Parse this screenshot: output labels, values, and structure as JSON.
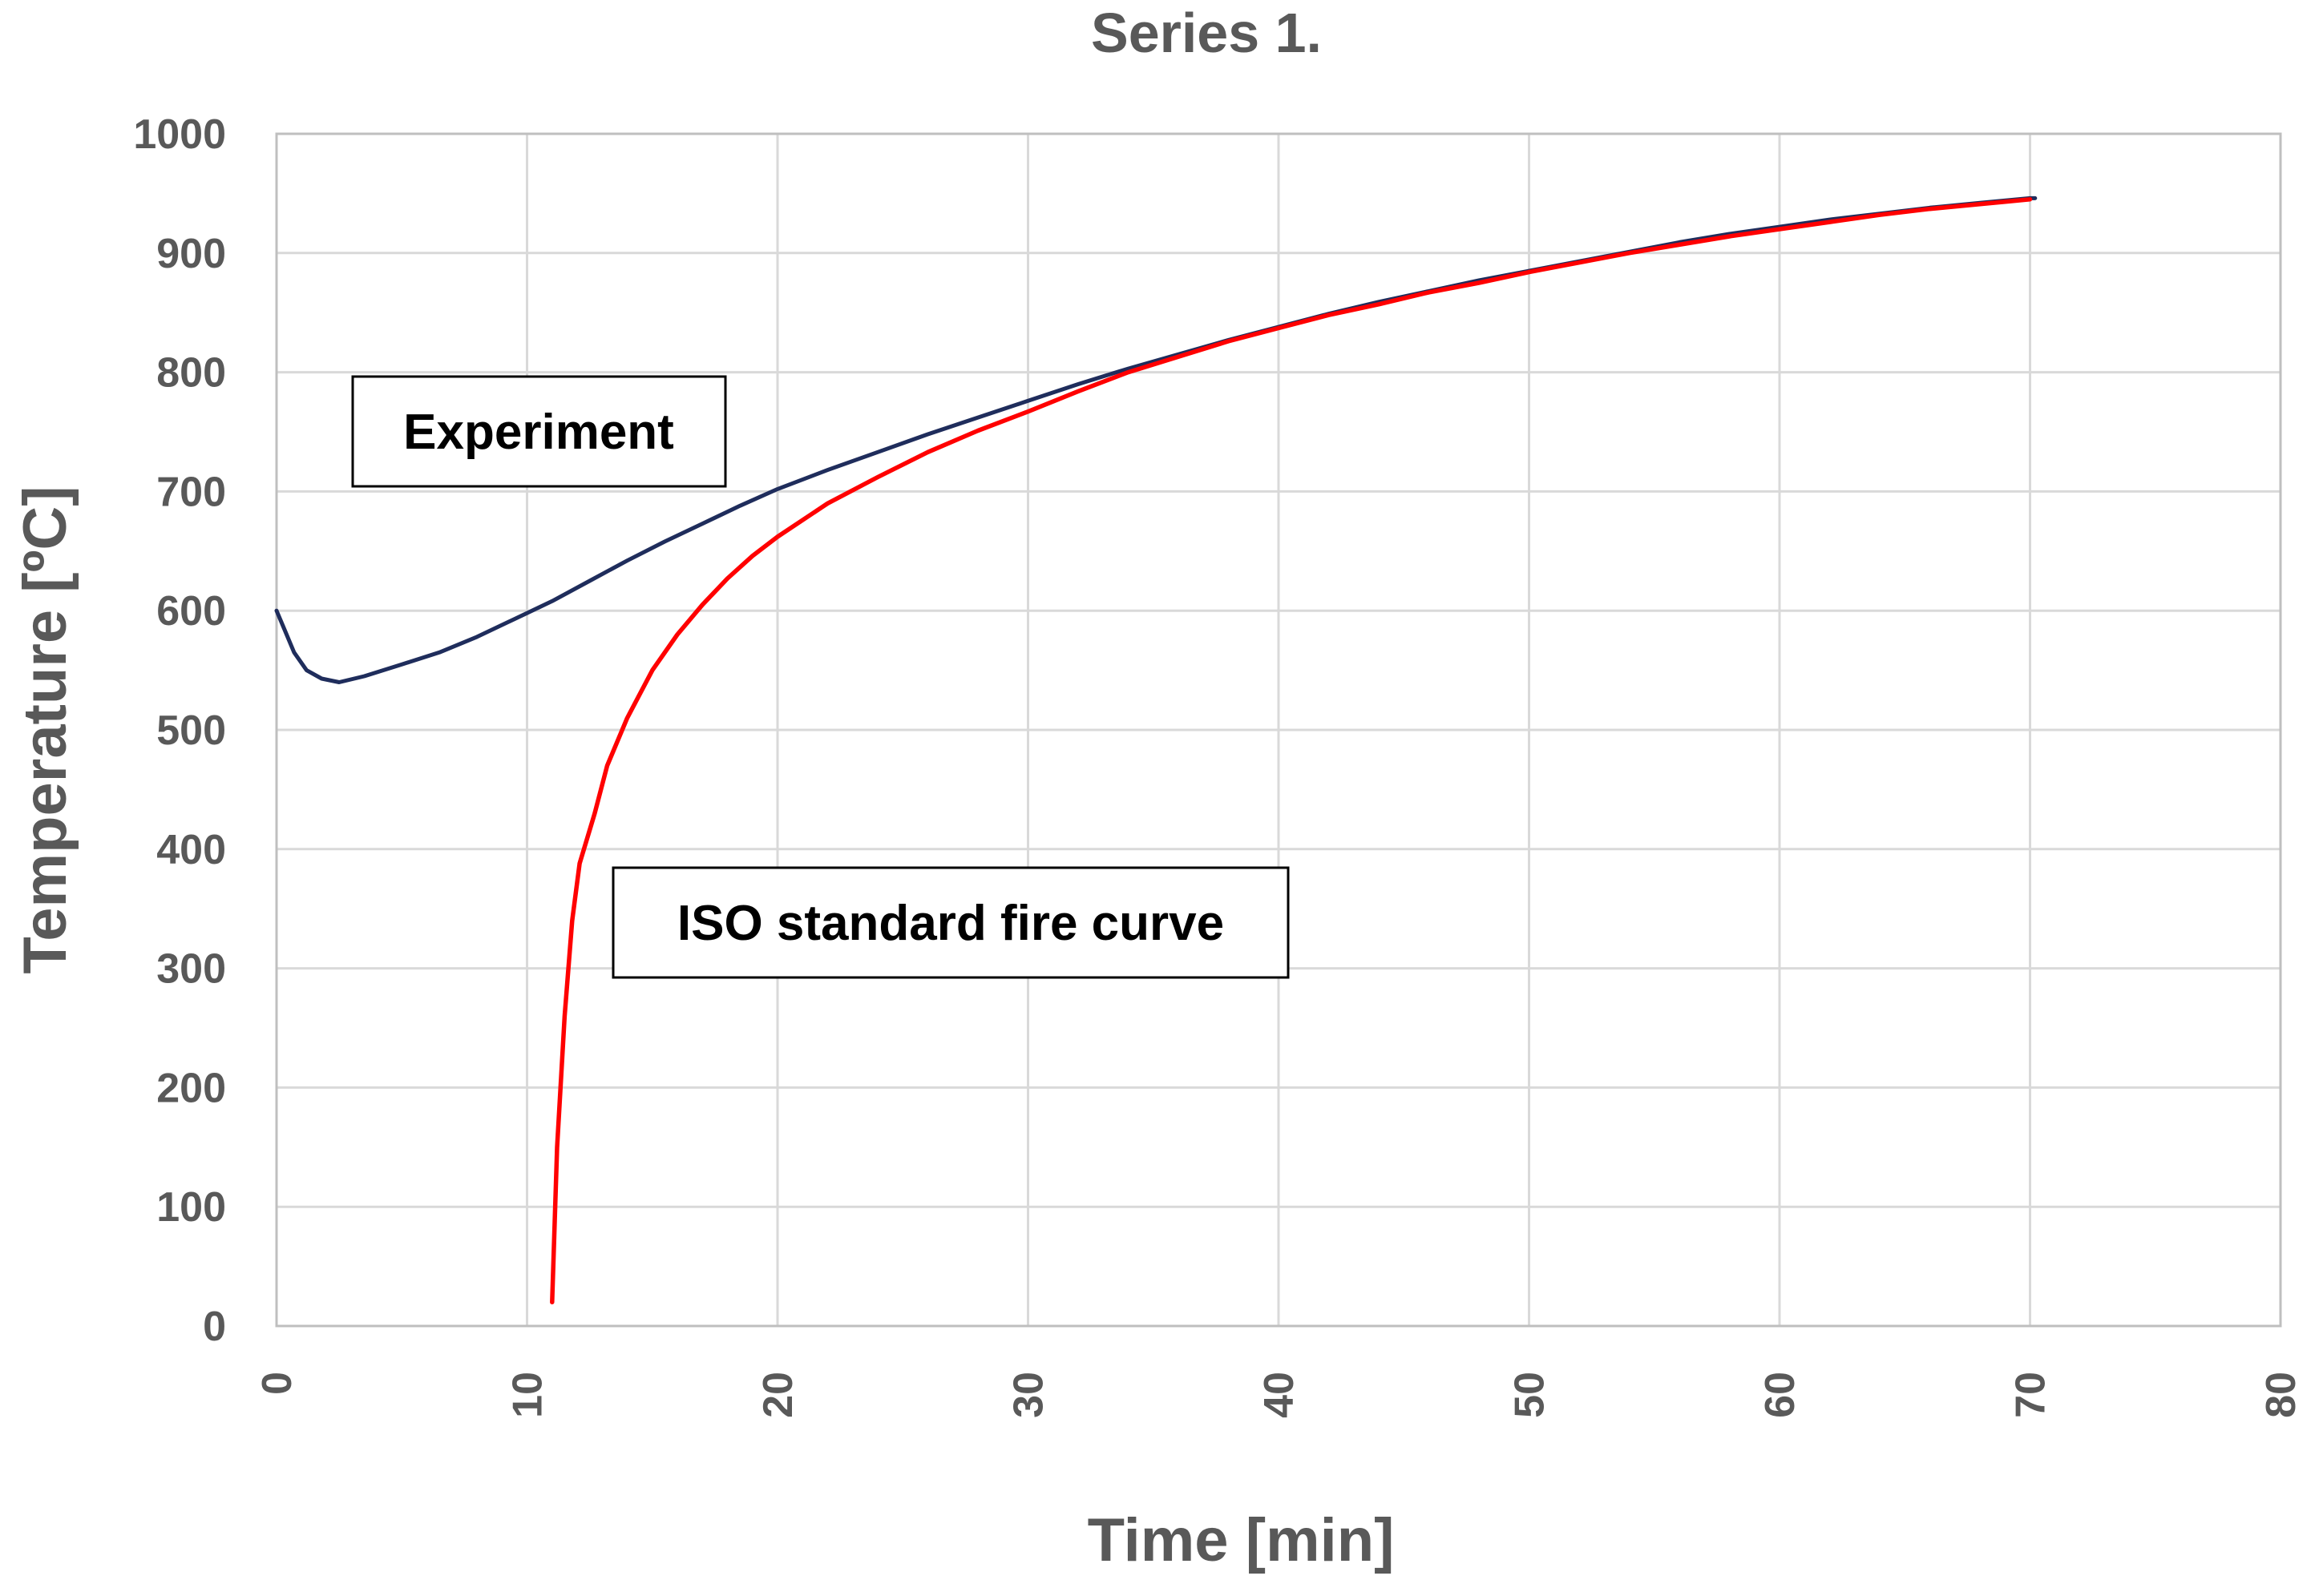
{
  "chart_data": {
    "type": "line",
    "title": "Series 1.",
    "xlabel": "Time [min]",
    "ylabel": "Temperature [ºC]",
    "xlim": [
      0,
      80
    ],
    "ylim": [
      0,
      1000
    ],
    "x_ticks": [
      0,
      10,
      20,
      30,
      40,
      50,
      60,
      70,
      80
    ],
    "y_ticks": [
      0,
      100,
      200,
      300,
      400,
      500,
      600,
      700,
      800,
      900,
      1000
    ],
    "grid": true,
    "series": [
      {
        "name": "Experiment",
        "color": "#1f2d5c",
        "points": [
          [
            0,
            600
          ],
          [
            0.3,
            585
          ],
          [
            0.7,
            565
          ],
          [
            1.2,
            550
          ],
          [
            1.8,
            543
          ],
          [
            2.5,
            540
          ],
          [
            3.5,
            545
          ],
          [
            5,
            555
          ],
          [
            6.5,
            565
          ],
          [
            8,
            578
          ],
          [
            9.5,
            593
          ],
          [
            11,
            608
          ],
          [
            12.5,
            625
          ],
          [
            14,
            642
          ],
          [
            15.5,
            658
          ],
          [
            17,
            673
          ],
          [
            18.5,
            688
          ],
          [
            20,
            702
          ],
          [
            22,
            718
          ],
          [
            24,
            733
          ],
          [
            26,
            748
          ],
          [
            28,
            762
          ],
          [
            30,
            776
          ],
          [
            32,
            790
          ],
          [
            34,
            803
          ],
          [
            36,
            815
          ],
          [
            38,
            827
          ],
          [
            40,
            838
          ],
          [
            42,
            849
          ],
          [
            44,
            859
          ],
          [
            46,
            868
          ],
          [
            48,
            877
          ],
          [
            50,
            885
          ],
          [
            52,
            893
          ],
          [
            54,
            901
          ],
          [
            56,
            909
          ],
          [
            58,
            916
          ],
          [
            60,
            922
          ],
          [
            62,
            928
          ],
          [
            64,
            933
          ],
          [
            66,
            938
          ],
          [
            68,
            942
          ],
          [
            70,
            946
          ],
          [
            70.2,
            946
          ]
        ]
      },
      {
        "name": "ISO standard fire curve",
        "color": "#ff0000",
        "points": [
          [
            11,
            20
          ],
          [
            11.2,
            150
          ],
          [
            11.5,
            260
          ],
          [
            11.8,
            340
          ],
          [
            12.1,
            388
          ],
          [
            12.7,
            430
          ],
          [
            13.2,
            470
          ],
          [
            14,
            510
          ],
          [
            15,
            550
          ],
          [
            16,
            580
          ],
          [
            17,
            605
          ],
          [
            18,
            627
          ],
          [
            19,
            646
          ],
          [
            20,
            662
          ],
          [
            22,
            690
          ],
          [
            24,
            712
          ],
          [
            26,
            733
          ],
          [
            28,
            751
          ],
          [
            30,
            767
          ],
          [
            32,
            784
          ],
          [
            34,
            800
          ],
          [
            36,
            813
          ],
          [
            38,
            826
          ],
          [
            40,
            837
          ],
          [
            42,
            848
          ],
          [
            44,
            857
          ],
          [
            46,
            867
          ],
          [
            48,
            875
          ],
          [
            50,
            884
          ],
          [
            52,
            892
          ],
          [
            54,
            900
          ],
          [
            56,
            907
          ],
          [
            58,
            914
          ],
          [
            60,
            920
          ],
          [
            62,
            926
          ],
          [
            64,
            932
          ],
          [
            66,
            937
          ],
          [
            68,
            941
          ],
          [
            70,
            945
          ]
        ]
      }
    ],
    "annotations": [
      {
        "text": "Experiment"
      },
      {
        "text": "ISO standard fire curve"
      }
    ]
  }
}
